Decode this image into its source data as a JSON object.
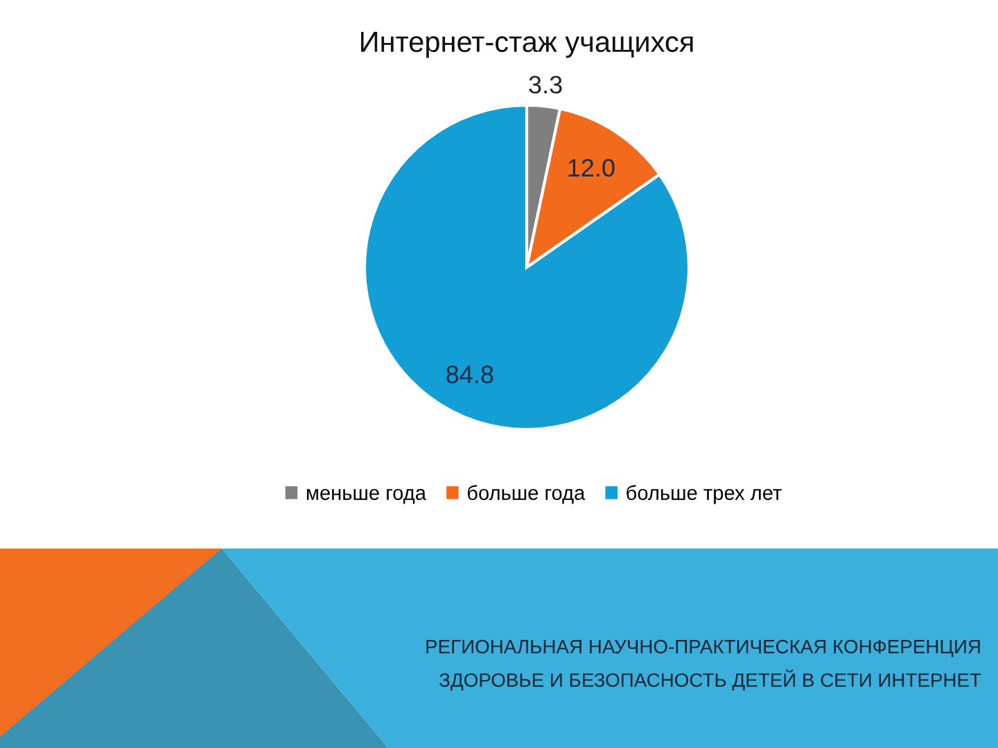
{
  "chart_data": {
    "type": "pie",
    "title": "Интернет-стаж учащихся",
    "categories": [
      "меньше года",
      "больше года",
      "больше трех лет"
    ],
    "values": [
      3.3,
      12.0,
      84.8
    ],
    "value_labels": [
      "3.3",
      "12.0",
      "84.8"
    ],
    "colors": [
      "#7f7f7f",
      "#f26b1d",
      "#139ed6"
    ],
    "legend": "bottom",
    "annotations": [
      "РЕГИОНАЛЬНАЯ НАУЧНО-ПРАКТИЧЕСКАЯ КОНФЕРЕНЦИЯ",
      "ЗДОРОВЬЕ И БЕЗОПАСНОСТЬ ДЕТЕЙ В СЕТИ ИНТЕРНЕТ"
    ]
  }
}
